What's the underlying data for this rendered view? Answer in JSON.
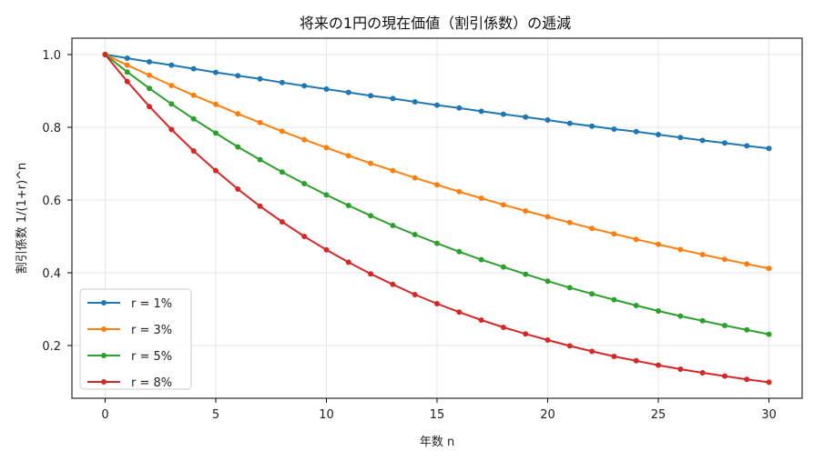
{
  "chart_data": {
    "type": "line",
    "title": "将来の1円の現在価値（割引係数）の逓減",
    "xlabel": "年数 n",
    "ylabel": "割引係数 1/(1+r)^n",
    "xlim": [
      -1.5,
      31.5
    ],
    "ylim": [
      0.055,
      1.045
    ],
    "xticks": [
      0,
      5,
      10,
      15,
      20,
      25,
      30
    ],
    "yticks": [
      0.2,
      0.4,
      0.6,
      0.8,
      1.0
    ],
    "xtick_labels": [
      "0",
      "5",
      "10",
      "15",
      "20",
      "25",
      "30"
    ],
    "ytick_labels": [
      "0.2",
      "0.4",
      "0.6",
      "0.8",
      "1.0"
    ],
    "grid": true,
    "legend_position": "lower-left",
    "x": [
      0,
      1,
      2,
      3,
      4,
      5,
      6,
      7,
      8,
      9,
      10,
      11,
      12,
      13,
      14,
      15,
      16,
      17,
      18,
      19,
      20,
      21,
      22,
      23,
      24,
      25,
      26,
      27,
      28,
      29,
      30
    ],
    "series": [
      {
        "name": "r = 1%",
        "color": "#1f77b4",
        "values": [
          1.0,
          0.99,
          0.98,
          0.971,
          0.961,
          0.951,
          0.942,
          0.933,
          0.923,
          0.914,
          0.905,
          0.896,
          0.887,
          0.879,
          0.87,
          0.861,
          0.853,
          0.844,
          0.836,
          0.828,
          0.82,
          0.811,
          0.803,
          0.795,
          0.788,
          0.78,
          0.772,
          0.764,
          0.757,
          0.749,
          0.742
        ]
      },
      {
        "name": "r = 3%",
        "color": "#ff7f0e",
        "values": [
          1.0,
          0.971,
          0.943,
          0.915,
          0.888,
          0.863,
          0.837,
          0.813,
          0.789,
          0.766,
          0.744,
          0.722,
          0.701,
          0.681,
          0.661,
          0.642,
          0.623,
          0.605,
          0.587,
          0.57,
          0.554,
          0.538,
          0.522,
          0.507,
          0.492,
          0.478,
          0.464,
          0.45,
          0.437,
          0.424,
          0.412
        ]
      },
      {
        "name": "r = 5%",
        "color": "#2ca02c",
        "values": [
          1.0,
          0.952,
          0.907,
          0.864,
          0.823,
          0.784,
          0.746,
          0.711,
          0.677,
          0.645,
          0.614,
          0.585,
          0.557,
          0.53,
          0.505,
          0.481,
          0.458,
          0.436,
          0.416,
          0.396,
          0.377,
          0.359,
          0.342,
          0.326,
          0.31,
          0.295,
          0.281,
          0.268,
          0.255,
          0.243,
          0.231
        ]
      },
      {
        "name": "r = 8%",
        "color": "#d62728",
        "values": [
          1.0,
          0.926,
          0.857,
          0.794,
          0.735,
          0.681,
          0.63,
          0.583,
          0.54,
          0.5,
          0.463,
          0.429,
          0.397,
          0.368,
          0.34,
          0.315,
          0.292,
          0.27,
          0.25,
          0.232,
          0.215,
          0.199,
          0.184,
          0.17,
          0.158,
          0.146,
          0.135,
          0.125,
          0.116,
          0.107,
          0.099
        ]
      }
    ]
  }
}
